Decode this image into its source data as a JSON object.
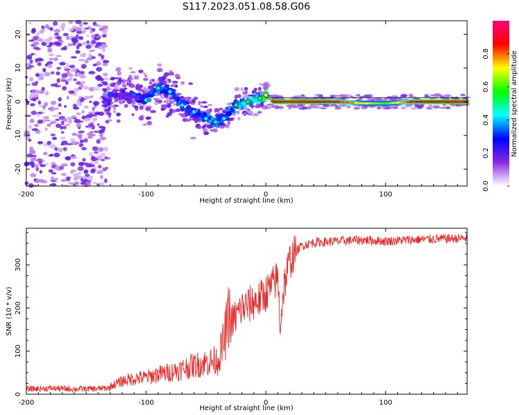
{
  "figure_title": "S117.2023.051.08.58.G06",
  "colors": {
    "snr_line": "#ee2222",
    "axis": "#000000"
  },
  "chart_data": [
    {
      "type": "heatmap",
      "title": "S117.2023.051.08.58.G06",
      "xlabel": "Height of straight line (km)",
      "ylabel": "Frequency (Hz)",
      "xlim": [
        -200,
        168
      ],
      "ylim": [
        -25,
        24
      ],
      "xticks": [
        -200,
        -100,
        0,
        100
      ],
      "xtick_labels": [
        "-200",
        "-100",
        "0",
        "100"
      ],
      "yticks": [
        -20,
        -10,
        0,
        10,
        20
      ],
      "ytick_labels": [
        "-20",
        "-10",
        "0",
        "10",
        "20"
      ],
      "grid": false,
      "colorbar": {
        "label": "Normalized spectral amplitude",
        "range": [
          0,
          1
        ],
        "ticks": [
          0.0,
          0.2,
          0.4,
          0.6,
          0.8
        ],
        "tick_labels": [
          "0.0",
          "0.2",
          "0.4",
          "0.6",
          "0.8"
        ],
        "colormap": [
          "#ffffff",
          "#8a2be2",
          "#0000ff",
          "#00ffff",
          "#00ff00",
          "#ffff00",
          "#ff0000",
          "#ff0080"
        ]
      },
      "ridge": {
        "description_points": [
          {
            "x": -130,
            "y": 2,
            "amp": 0.18
          },
          {
            "x": -110,
            "y": 2,
            "amp": 0.2
          },
          {
            "x": -100,
            "y": 0.5,
            "amp": 0.3
          },
          {
            "x": -90,
            "y": 4,
            "amp": 0.35
          },
          {
            "x": -80,
            "y": 3,
            "amp": 0.3
          },
          {
            "x": -70,
            "y": -1,
            "amp": 0.3
          },
          {
            "x": -60,
            "y": -3,
            "amp": 0.28
          },
          {
            "x": -50,
            "y": -5,
            "amp": 0.32
          },
          {
            "x": -42,
            "y": -6,
            "amp": 0.35
          },
          {
            "x": -35,
            "y": -5,
            "amp": 0.3
          },
          {
            "x": -25,
            "y": -1,
            "amp": 0.4
          },
          {
            "x": -15,
            "y": 0,
            "amp": 0.45
          },
          {
            "x": -5,
            "y": 1,
            "amp": 0.45
          },
          {
            "x": 0,
            "y": 2,
            "amp": 0.55
          },
          {
            "x": 5,
            "y": 0,
            "amp": 0.9
          },
          {
            "x": 20,
            "y": 0,
            "amp": 0.95
          },
          {
            "x": 40,
            "y": 0,
            "amp": 0.9
          },
          {
            "x": 60,
            "y": 0,
            "amp": 0.85
          },
          {
            "x": 80,
            "y": -0.5,
            "amp": 0.7
          },
          {
            "x": 100,
            "y": -0.5,
            "amp": 0.6
          },
          {
            "x": 120,
            "y": 0,
            "amp": 0.85
          },
          {
            "x": 140,
            "y": 0,
            "amp": 0.9
          },
          {
            "x": 168,
            "y": 0,
            "amp": 0.95
          }
        ]
      }
    },
    {
      "type": "line",
      "xlabel": "Height of straight line (km)",
      "ylabel": "SNR (10 * v/v)",
      "xlim": [
        -200,
        168
      ],
      "ylim": [
        0,
        385
      ],
      "xticks": [
        -200,
        -100,
        0,
        100
      ],
      "xtick_labels": [
        "-200",
        "-100",
        "0",
        "100"
      ],
      "yticks": [
        0,
        100,
        200,
        300
      ],
      "ytick_labels": [
        "0",
        "100",
        "200",
        "300"
      ],
      "grid": false,
      "series": [
        {
          "name": "SNR",
          "x": [
            -200,
            -180,
            -160,
            -140,
            -130,
            -120,
            -110,
            -100,
            -90,
            -80,
            -70,
            -60,
            -50,
            -40,
            -35,
            -30,
            -25,
            -20,
            -15,
            -10,
            -5,
            0,
            5,
            10,
            12,
            15,
            20,
            25,
            30,
            40,
            60,
            80,
            100,
            120,
            140,
            168
          ],
          "values": [
            12,
            14,
            12,
            13,
            15,
            25,
            30,
            32,
            38,
            42,
            48,
            55,
            60,
            65,
            100,
            160,
            180,
            200,
            205,
            215,
            220,
            235,
            250,
            270,
            160,
            250,
            310,
            330,
            345,
            352,
            355,
            358,
            355,
            358,
            360,
            362
          ]
        }
      ]
    }
  ]
}
